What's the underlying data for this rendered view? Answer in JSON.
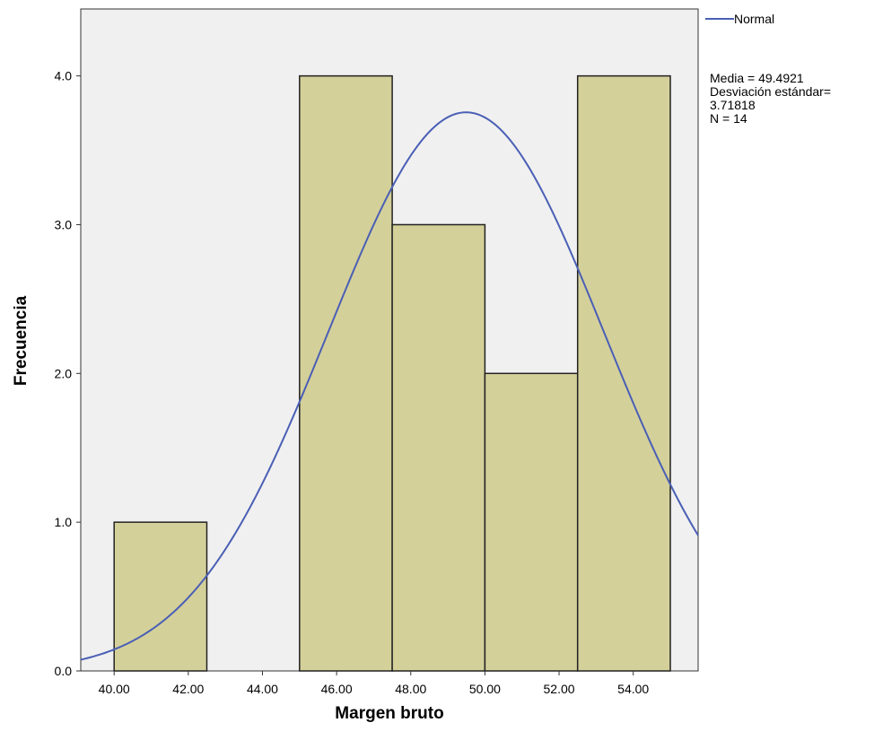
{
  "chart_data": {
    "type": "bar",
    "subtype": "histogram",
    "title": "",
    "xlabel": "Margen bruto",
    "ylabel": "Frecuencia",
    "xlim": [
      39.1,
      55.75
    ],
    "ylim": [
      0,
      4.45
    ],
    "x_ticks": [
      40,
      42,
      44,
      46,
      48,
      50,
      52,
      54
    ],
    "x_tick_labels": [
      "40.00",
      "42.00",
      "44.00",
      "46.00",
      "48.00",
      "50.00",
      "52.00",
      "54.00"
    ],
    "y_ticks": [
      0,
      1,
      2,
      3,
      4
    ],
    "y_tick_labels": [
      "0.0",
      "1.0",
      "2.0",
      "3.0",
      "4.0"
    ],
    "bins": [
      {
        "start": 40.0,
        "end": 42.5,
        "count": 1
      },
      {
        "start": 42.5,
        "end": 45.0,
        "count": 0
      },
      {
        "start": 45.0,
        "end": 47.5,
        "count": 4
      },
      {
        "start": 47.5,
        "end": 50.0,
        "count": 3
      },
      {
        "start": 50.0,
        "end": 52.5,
        "count": 2
      },
      {
        "start": 52.5,
        "end": 55.0,
        "count": 4
      }
    ],
    "normal_curve": {
      "name": "Normal",
      "mean": 49.4921,
      "std": 3.71818,
      "n": 14,
      "bin_width": 2.5,
      "color": "#4a5fb5"
    },
    "legend": {
      "label": "Normal",
      "placement": "right"
    },
    "stats_lines": [
      "Media = 49.4921",
      "Desviación estándar=",
      "3.71818",
      "N = 14"
    ],
    "grid": false,
    "colors": {
      "bar_fill": "#d4d09a",
      "bar_stroke": "#222222",
      "plot_bg": "#f0f0f0",
      "curve": "#4a5fb5"
    }
  }
}
